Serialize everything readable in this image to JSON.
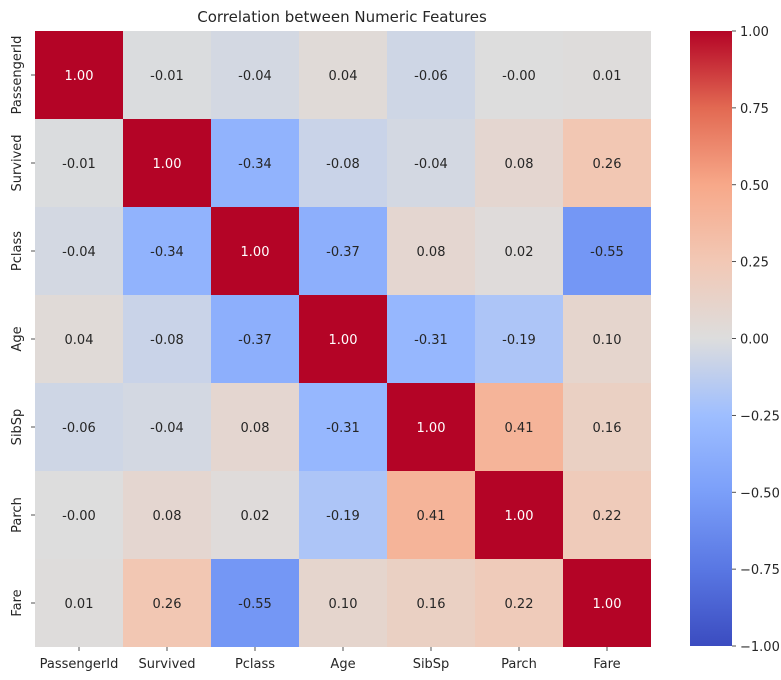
{
  "chart_data": {
    "type": "heatmap",
    "title": "Correlation between Numeric Features",
    "x_categories": [
      "PassengerId",
      "Survived",
      "Pclass",
      "Age",
      "SibSp",
      "Parch",
      "Fare"
    ],
    "y_categories": [
      "PassengerId",
      "Survived",
      "Pclass",
      "Age",
      "SibSp",
      "Parch",
      "Fare"
    ],
    "values": [
      [
        1.0,
        -0.01,
        -0.04,
        0.04,
        -0.06,
        -0.0,
        0.01
      ],
      [
        -0.01,
        1.0,
        -0.34,
        -0.08,
        -0.04,
        0.08,
        0.26
      ],
      [
        -0.04,
        -0.34,
        1.0,
        -0.37,
        0.08,
        0.02,
        -0.55
      ],
      [
        0.04,
        -0.08,
        -0.37,
        1.0,
        -0.31,
        -0.19,
        0.1
      ],
      [
        -0.06,
        -0.04,
        0.08,
        -0.31,
        1.0,
        0.41,
        0.16
      ],
      [
        -0.0,
        0.08,
        0.02,
        -0.19,
        0.41,
        1.0,
        0.22
      ],
      [
        0.01,
        0.26,
        -0.55,
        0.1,
        0.16,
        0.22,
        1.0
      ]
    ],
    "value_labels": [
      [
        "1.00",
        "-0.01",
        "-0.04",
        "0.04",
        "-0.06",
        "-0.00",
        "0.01"
      ],
      [
        "-0.01",
        "1.00",
        "-0.34",
        "-0.08",
        "-0.04",
        "0.08",
        "0.26"
      ],
      [
        "-0.04",
        "-0.34",
        "1.00",
        "-0.37",
        "0.08",
        "0.02",
        "-0.55"
      ],
      [
        "0.04",
        "-0.08",
        "-0.37",
        "1.00",
        "-0.31",
        "-0.19",
        "0.10"
      ],
      [
        "-0.06",
        "-0.04",
        "0.08",
        "-0.31",
        "1.00",
        "0.41",
        "0.16"
      ],
      [
        "-0.00",
        "0.08",
        "0.02",
        "-0.19",
        "0.41",
        "1.00",
        "0.22"
      ],
      [
        "0.01",
        "0.26",
        "-0.55",
        "0.10",
        "0.16",
        "0.22",
        "1.00"
      ]
    ],
    "colormap": "coolwarm",
    "vmin": -1.0,
    "vmax": 1.0,
    "colorbar_ticks": [
      1.0,
      0.75,
      0.5,
      0.25,
      0.0,
      -0.25,
      -0.5,
      -0.75,
      -1.0
    ],
    "colorbar_tick_labels": [
      "1.00",
      "0.75",
      "0.50",
      "0.25",
      "0.00",
      "−0.25",
      "−0.50",
      "−0.75",
      "−1.00"
    ]
  }
}
